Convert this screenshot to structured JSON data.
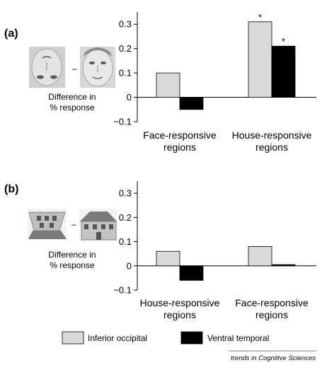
{
  "chart_data": [
    {
      "type": "bar",
      "panel_label": "(a)",
      "categories": [
        "Face-responsive regions",
        "House-responsive regions"
      ],
      "series": [
        {
          "name": "Inferior occipital",
          "values": [
            0.1,
            0.31
          ]
        },
        {
          "name": "Ventral temporal",
          "values": [
            -0.05,
            0.21
          ]
        }
      ],
      "significance": [
        [
          false,
          true
        ],
        [
          false,
          true
        ]
      ],
      "ylim": [
        -0.1,
        0.35
      ],
      "yticks": [
        -0.1,
        0,
        0.1,
        0.2,
        0.3
      ],
      "ytick_labels": [
        "−0.1",
        "0",
        "0.1",
        "0.2",
        "0.3"
      ],
      "side_label": [
        "Difference in",
        "% response"
      ],
      "minus_sign": "–",
      "stimulus_icons": [
        "inverted-face-icon",
        "upright-face-icon"
      ],
      "category_lines": [
        [
          "Face-responsive",
          "regions"
        ],
        [
          "House-responsive",
          "regions"
        ]
      ]
    },
    {
      "type": "bar",
      "panel_label": "(b)",
      "categories": [
        "House-responsive regions",
        "Face-responsive regions"
      ],
      "series": [
        {
          "name": "Inferior occipital",
          "values": [
            0.06,
            0.08
          ]
        },
        {
          "name": "Ventral temporal",
          "values": [
            -0.06,
            0.005
          ]
        }
      ],
      "significance": [
        [
          false,
          false
        ],
        [
          false,
          false
        ]
      ],
      "ylim": [
        -0.1,
        0.35
      ],
      "yticks": [
        -0.1,
        0,
        0.1,
        0.2,
        0.3
      ],
      "ytick_labels": [
        "−0.1",
        "0",
        "0.1",
        "0.2",
        "0.3"
      ],
      "side_label": [
        "Difference in",
        "% response"
      ],
      "minus_sign": "–",
      "stimulus_icons": [
        "inverted-house-icon",
        "upright-house-icon"
      ],
      "category_lines": [
        [
          "House-responsive",
          "regions"
        ],
        [
          "Face-responsive",
          "regions"
        ]
      ]
    }
  ],
  "significance_marker": "*",
  "legend": {
    "items": [
      {
        "label": "Inferior occipital",
        "color": "#d9d9d9"
      },
      {
        "label": "Ventral temporal",
        "color": "#000000"
      }
    ],
    "placement": "bottom"
  },
  "credit": "trends in Cognitive Sciences",
  "colors": {
    "series_a": "#d9d9d9",
    "series_b": "#000000",
    "axis": "#000000"
  }
}
